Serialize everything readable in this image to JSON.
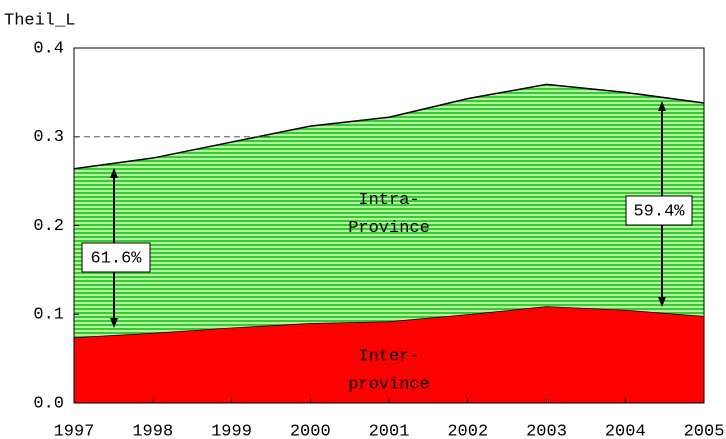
{
  "chart_data": {
    "type": "area",
    "stacked": true,
    "axis_label": "Theil_L",
    "x": [
      1997,
      1998,
      1999,
      2000,
      2001,
      2002,
      2003,
      2004,
      2005
    ],
    "xlim": [
      1997,
      2005
    ],
    "xticks": [
      1997,
      1998,
      1999,
      2000,
      2001,
      2002,
      2003,
      2004,
      2005
    ],
    "ylim": [
      0,
      0.4
    ],
    "yticks": [
      {
        "value": 0,
        "label": "0.0"
      },
      0.1,
      0.2,
      0.3,
      0.4
    ],
    "series": [
      {
        "label_lines": [
          "Inter-",
          "province"
        ],
        "color": "#ff0000",
        "pattern": "solid",
        "values": [
          0.074,
          0.079,
          0.085,
          0.09,
          0.092,
          0.1,
          0.109,
          0.105,
          0.098
        ]
      },
      {
        "label_lines": [
          "Intra-",
          "Province"
        ],
        "color": "#33cc33",
        "pattern": "horizontal-stripes",
        "values": [
          0.19,
          0.197,
          0.209,
          0.222,
          0.23,
          0.243,
          0.25,
          0.245,
          0.24
        ]
      }
    ],
    "annotations": [
      "61.6%",
      "59.4%"
    ]
  }
}
